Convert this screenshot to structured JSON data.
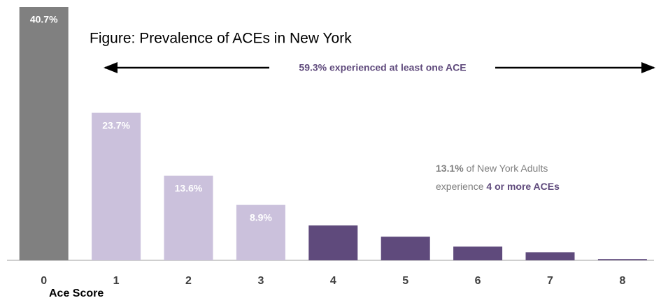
{
  "chart_data": {
    "type": "bar",
    "title": "Figure: Prevalence of ACEs in New York",
    "x_label": "Ace Score",
    "categories": [
      "0",
      "1",
      "2",
      "3",
      "4",
      "5",
      "6",
      "7",
      "8"
    ],
    "values": [
      40.7,
      23.7,
      13.6,
      8.9,
      5.6,
      3.8,
      2.2,
      1.3,
      0.2
    ],
    "value_labels": [
      "40.7%",
      "23.7%",
      "13.6%",
      "8.9%",
      null,
      null,
      null,
      null,
      null
    ],
    "colors": [
      "#808080",
      "#cbc1dc",
      "#cbc1dc",
      "#cbc1dc",
      "#5f4a7c",
      "#5f4a7c",
      "#5f4a7c",
      "#5f4a7c",
      "#5f4a7c"
    ],
    "annotations": {
      "range": "59.3% experienced at least one ACE",
      "note": [
        "13.1%",
        "of New York Adults",
        "experience",
        "4 or more ACEs"
      ]
    }
  }
}
